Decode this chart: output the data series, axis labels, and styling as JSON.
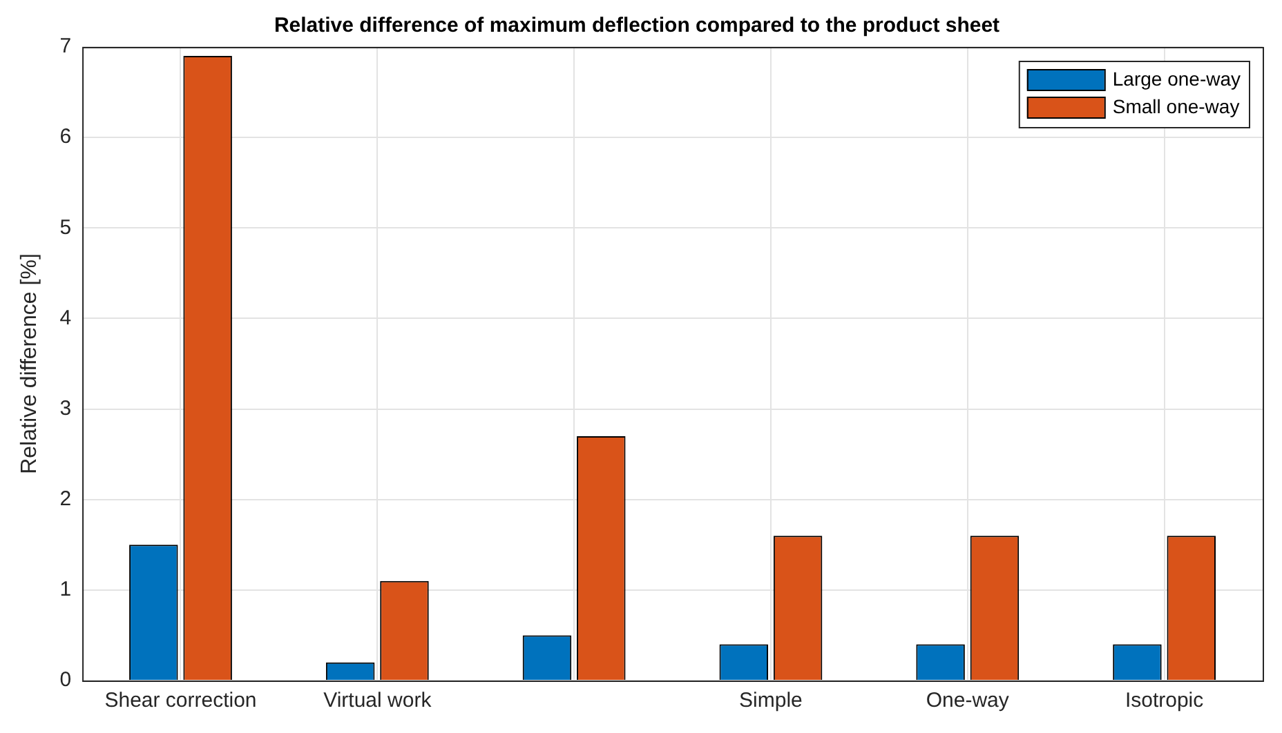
{
  "chart_data": {
    "type": "bar",
    "title": "Relative difference of maximum deflection compared to the product sheet",
    "ylabel": "Relative difference [%]",
    "categories": [
      "Shear correction",
      "Virtual work",
      null,
      "Simple",
      "One-way",
      "Isotropic"
    ],
    "series": [
      {
        "name": "Large one-way",
        "color": "#0072bd",
        "values": [
          1.5,
          0.2,
          0.5,
          0.4,
          0.4,
          0.4
        ]
      },
      {
        "name": "Small one-way",
        "color": "#d95319",
        "values": [
          6.9,
          1.1,
          2.7,
          1.6,
          1.6,
          1.6
        ]
      }
    ],
    "ylim": [
      0,
      7
    ],
    "yticks": [
      0,
      1,
      2,
      3,
      4,
      5,
      6,
      7
    ],
    "grid": true,
    "legend": "top right"
  }
}
